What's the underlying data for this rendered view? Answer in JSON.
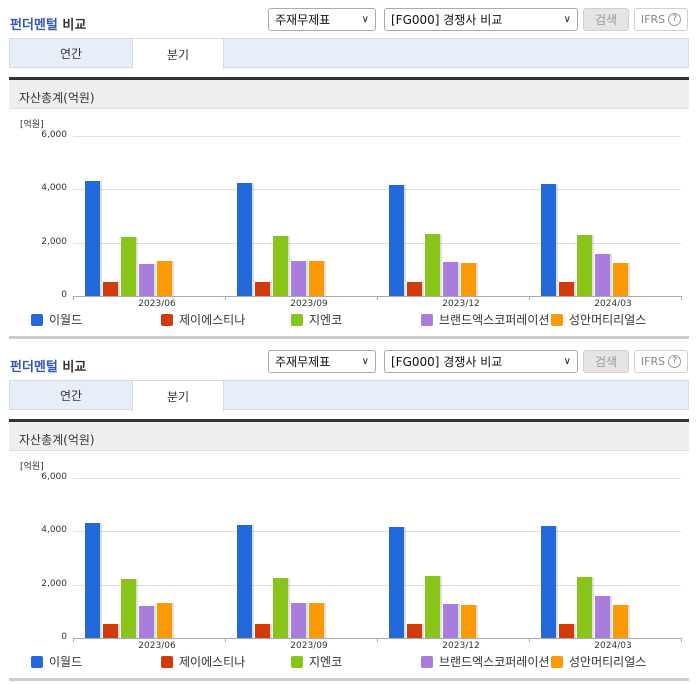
{
  "sections": [
    {
      "header": {
        "title_part1": "펀더멘털",
        "title_part2": "비교",
        "select_statement": "주재무제표",
        "select_group": "[FG000] 경쟁사 비교",
        "search_label": "검색",
        "ifrs_label": "IFRS",
        "help_glyph": "?"
      },
      "tabs": [
        {
          "label": "연간",
          "active": false
        },
        {
          "label": "분기",
          "active": true
        }
      ],
      "panel_title": "자산총계(억원)",
      "unit_label": "[억원]"
    },
    {
      "header": {
        "title_part1": "펀더멘털",
        "title_part2": "비교",
        "select_statement": "주재무제표",
        "select_group": "[FG000] 경쟁사 비교",
        "search_label": "검색",
        "ifrs_label": "IFRS",
        "help_glyph": "?"
      },
      "tabs": [
        {
          "label": "연간",
          "active": false
        },
        {
          "label": "분기",
          "active": true
        }
      ],
      "panel_title": "자산총계(억원)",
      "unit_label": "[억원]"
    }
  ],
  "icons": {
    "chevron": "chevron-down-icon",
    "help": "question-circle-icon"
  },
  "colors": {
    "blue": "#2469d9",
    "red": "#d03a0c",
    "green": "#89c41a",
    "purple": "#a97ddb",
    "orange": "#fb9a05"
  },
  "chart_data": [
    {
      "type": "bar",
      "title": "자산총계(억원)",
      "ylabel": "[억원]",
      "ylim": [
        0,
        6000
      ],
      "yticks": [
        "0",
        "2,000",
        "4,000",
        "6,000"
      ],
      "grid": true,
      "legend_position": "bottom",
      "categories": [
        "2023/06",
        "2023/09",
        "2023/12",
        "2024/03"
      ],
      "series": [
        {
          "name": "이월드",
          "color": "#2469d9",
          "values": [
            4310,
            4240,
            4160,
            4200
          ]
        },
        {
          "name": "제이에스티나",
          "color": "#d03a0c",
          "values": [
            530,
            530,
            530,
            530
          ]
        },
        {
          "name": "지엔코",
          "color": "#89c41a",
          "values": [
            2210,
            2250,
            2330,
            2290
          ]
        },
        {
          "name": "브랜드엑스코퍼레이션",
          "color": "#a97ddb",
          "values": [
            1200,
            1320,
            1280,
            1580
          ]
        },
        {
          "name": "성안머티리얼스",
          "color": "#fb9a05",
          "values": [
            1320,
            1320,
            1240,
            1240
          ]
        }
      ]
    },
    {
      "type": "bar",
      "title": "자산총계(억원)",
      "ylabel": "[억원]",
      "ylim": [
        0,
        6000
      ],
      "yticks": [
        "0",
        "2,000",
        "4,000",
        "6,000"
      ],
      "grid": true,
      "legend_position": "bottom",
      "categories": [
        "2023/06",
        "2023/09",
        "2023/12",
        "2024/03"
      ],
      "series": [
        {
          "name": "이월드",
          "color": "#2469d9",
          "values": [
            4310,
            4240,
            4160,
            4200
          ]
        },
        {
          "name": "제이에스티나",
          "color": "#d03a0c",
          "values": [
            530,
            530,
            530,
            530
          ]
        },
        {
          "name": "지엔코",
          "color": "#89c41a",
          "values": [
            2210,
            2250,
            2330,
            2290
          ]
        },
        {
          "name": "브랜드엑스코퍼레이션",
          "color": "#a97ddb",
          "values": [
            1200,
            1320,
            1280,
            1580
          ]
        },
        {
          "name": "성안머티리얼스",
          "color": "#fb9a05",
          "values": [
            1320,
            1320,
            1240,
            1240
          ]
        }
      ]
    }
  ]
}
